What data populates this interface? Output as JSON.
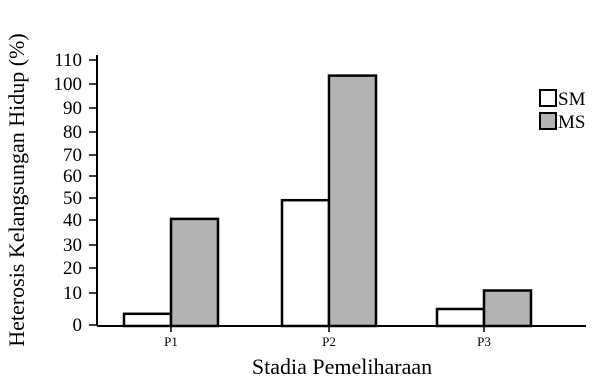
{
  "chart_data": {
    "type": "bar",
    "categories": [
      "P1",
      "P2",
      "P3"
    ],
    "series": [
      {
        "name": "SM",
        "values": [
          3.5,
          49,
          5
        ],
        "color": "#ffffff"
      },
      {
        "name": "MS",
        "values": [
          40.5,
          103.5,
          11
        ],
        "color": "#b3b3b3"
      }
    ],
    "xlabel": "Stadia Pemeliharaan",
    "ylabel": "Heterosis Kelangsungan Hidup (%)",
    "yticks": [
      "0",
      "10",
      "20",
      "30",
      "40",
      "50",
      "60",
      "70",
      "80",
      "90",
      "100",
      "110"
    ],
    "legend_position": "right"
  }
}
